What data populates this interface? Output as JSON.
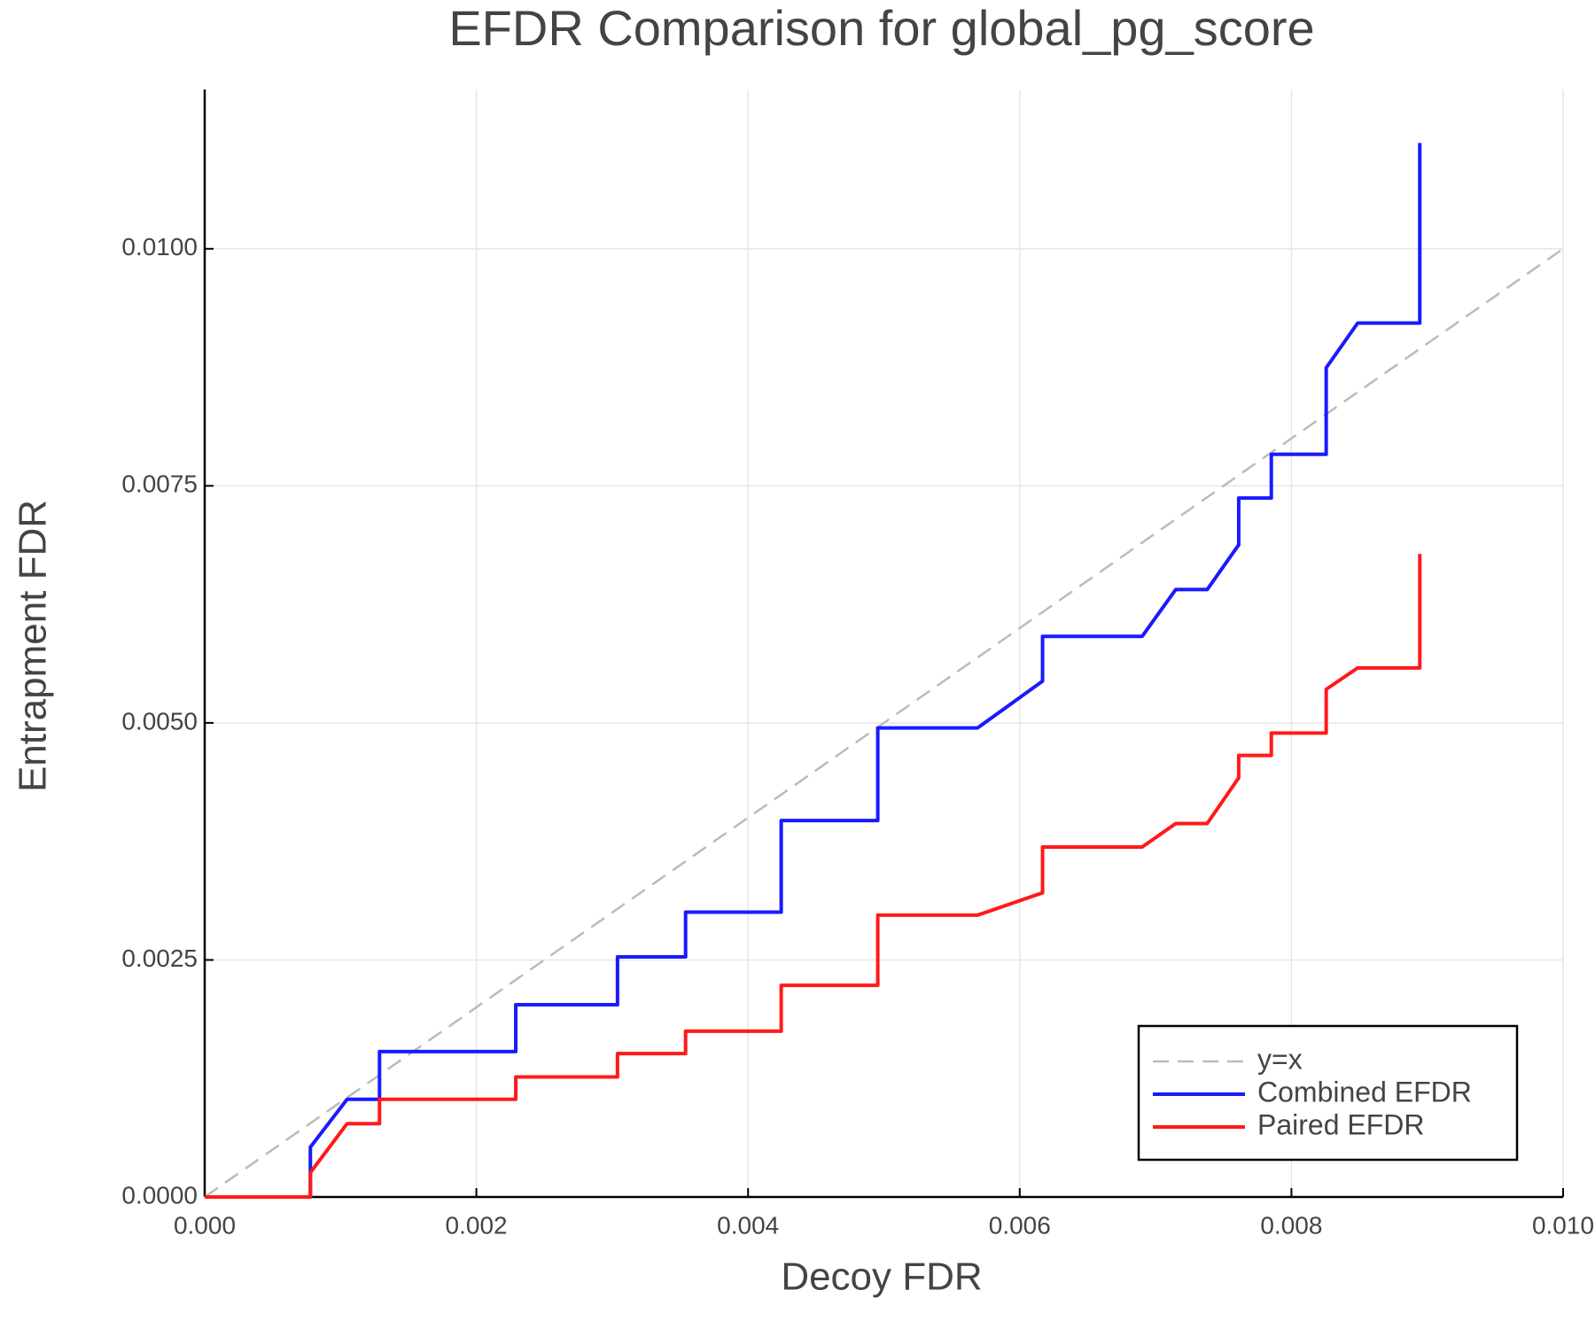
{
  "chart_data": {
    "type": "line",
    "title": "EFDR Comparison for global_pg_score",
    "x_label": "Decoy FDR",
    "y_label": "Entrapment FDR",
    "xlim": [
      0,
      0.01
    ],
    "ylim": [
      0,
      0.01168
    ],
    "xticks": [
      {
        "value": 0,
        "label": "0.000"
      },
      {
        "value": 0.002,
        "label": "0.002"
      },
      {
        "value": 0.004,
        "label": "0.004"
      },
      {
        "value": 0.006,
        "label": "0.006"
      },
      {
        "value": 0.008,
        "label": "0.008"
      },
      {
        "value": 0.01,
        "label": "0.010"
      }
    ],
    "yticks": [
      {
        "value": 0,
        "label": "0.0000"
      },
      {
        "value": 0.0025,
        "label": "0.0025"
      },
      {
        "value": 0.005,
        "label": "0.0050"
      },
      {
        "value": 0.0075,
        "label": "0.0075"
      },
      {
        "value": 0.01,
        "label": "0.0100"
      }
    ],
    "grid": true,
    "legend": "bottom right",
    "series": [
      {
        "name": "y=x",
        "color": "#bbbbbb",
        "dashed": true,
        "x": [
          0,
          0.01
        ],
        "y": [
          0,
          0.01
        ]
      },
      {
        "name": "Combined EFDR",
        "color": "#1a1aff",
        "dashed": false,
        "x": [
          0,
          0.000778,
          0.000778,
          0.001048,
          0.001287,
          0.001287,
          0.00229,
          0.00229,
          0.003039,
          0.003039,
          0.00354,
          0.00354,
          0.004244,
          0.004244,
          0.004955,
          0.004955,
          0.005689,
          0.006168,
          0.006168,
          0.006901,
          0.007148,
          0.00738,
          0.007612,
          0.007612,
          0.007852,
          0.007852,
          0.008256,
          0.008256,
          0.008488,
          0.008945,
          0.008945
        ],
        "y": [
          0,
          0,
          0.000526,
          0.00103,
          0.00103,
          0.001534,
          0.001534,
          0.002028,
          0.002028,
          0.002532,
          0.002532,
          0.003004,
          0.003004,
          0.00397,
          0.00397,
          0.004946,
          0.004946,
          0.00544,
          0.005912,
          0.005912,
          0.006406,
          0.006406,
          0.006878,
          0.007371,
          0.007371,
          0.007833,
          0.007833,
          0.008745,
          0.009217,
          0.009217,
          0.011116
        ]
      },
      {
        "name": "Paired EFDR",
        "color": "#ff1a1a",
        "dashed": false,
        "x": [
          0,
          0.000778,
          0.000778,
          0.001048,
          0.001287,
          0.001287,
          0.00229,
          0.00229,
          0.003039,
          0.003039,
          0.00354,
          0.00354,
          0.004244,
          0.004244,
          0.004955,
          0.004955,
          0.005689,
          0.006168,
          0.006168,
          0.006901,
          0.007148,
          0.00738,
          0.007612,
          0.007612,
          0.007852,
          0.007852,
          0.008256,
          0.008256,
          0.008488,
          0.008945,
          0.008945
        ],
        "y": [
          0,
          0,
          0.000258,
          0.000773,
          0.000773,
          0.00103,
          0.00103,
          0.001266,
          0.001266,
          0.001513,
          0.001513,
          0.001748,
          0.001748,
          0.002232,
          0.002232,
          0.002972,
          0.002972,
          0.003208,
          0.003691,
          0.003691,
          0.003938,
          0.003938,
          0.004421,
          0.004657,
          0.004657,
          0.004893,
          0.004893,
          0.005354,
          0.00558,
          0.00558,
          0.006781
        ]
      }
    ]
  }
}
